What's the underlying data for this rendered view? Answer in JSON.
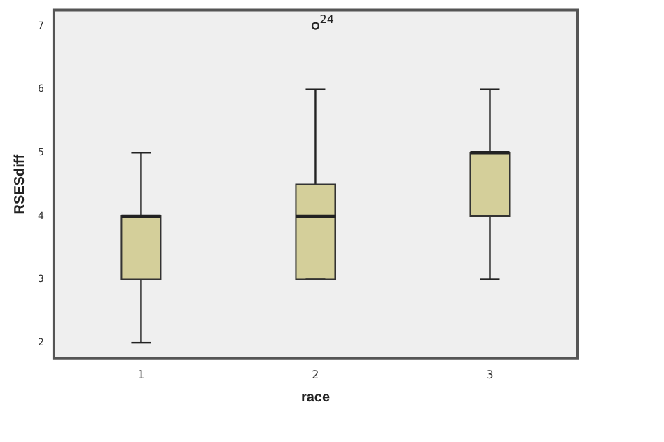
{
  "chart_data": {
    "type": "box",
    "xlabel": "race",
    "ylabel": "RSESdiff",
    "categories": [
      "1",
      "2",
      "3"
    ],
    "color": "#d4cf9a",
    "boxes": [
      {
        "low": 2,
        "q1": 3,
        "median": 4,
        "q3": 4,
        "high": 5
      },
      {
        "low": 3,
        "q1": 3,
        "median": 4,
        "q3": 4.5,
        "high": 6,
        "outliers": [
          7
        ]
      },
      {
        "low": 3,
        "q1": 4,
        "median": 5,
        "q3": 5,
        "high": 6
      }
    ],
    "annotations": [
      "24"
    ],
    "ylim": [
      1.75,
      7.25
    ],
    "yticks": [
      2,
      3,
      4,
      5,
      6,
      7
    ],
    "grid": false,
    "legend": false
  }
}
